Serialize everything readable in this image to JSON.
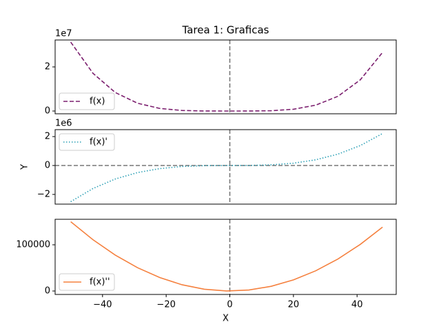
{
  "chart_data": [
    {
      "type": "line",
      "title": "Tarea 1: Graficas",
      "offset_text": "1e7",
      "legend": "lower left",
      "vline": 0,
      "x": [
        -50,
        -43,
        -36,
        -29,
        -22,
        -15,
        -8,
        -1,
        6,
        13,
        20,
        27,
        34,
        41,
        48
      ],
      "series": [
        {
          "name": "f(x)",
          "color": "#7b1e6e",
          "style": "dashed",
          "values": [
            31250000,
            17094005,
            8398080,
            3536405,
            1171280,
            253125,
            20480,
            5,
            6480,
            142805,
            800000,
            2657205,
            6681680,
            14128805,
            26542080
          ]
        }
      ],
      "xlim": [
        -54.9,
        52.3
      ],
      "ylim": [
        -1250000,
        32200000
      ],
      "yticks": [
        0,
        {
          "value": 20000000,
          "label": "2"
        }
      ]
    },
    {
      "type": "line",
      "ylabel": "Y",
      "offset_text": "1e6",
      "legend": "upper left",
      "vline": 0,
      "hline": 0,
      "x": [
        -50,
        -43,
        -36,
        -29,
        -22,
        -15,
        -8,
        -1,
        6,
        13,
        20,
        27,
        34,
        41,
        48
      ],
      "series": [
        {
          "name": "f(x)'",
          "color": "#2a9fb5",
          "style": "dotted",
          "values": [
            -2500000,
            -1590140,
            -933120,
            -487780,
            -212960,
            -67500,
            -10240,
            -20,
            4320,
            43940,
            160000,
            393660,
            786080,
            1378420,
            2211840
          ]
        }
      ],
      "xlim": [
        -54.9,
        52.3
      ],
      "ylim": [
        -2670000,
        2480000
      ],
      "yticks": [
        {
          "value": -2000000,
          "label": "−2"
        },
        0,
        {
          "value": 2000000,
          "label": "2"
        }
      ]
    },
    {
      "type": "line",
      "xlabel": "X",
      "legend": "lower left",
      "vline": 0,
      "x": [
        -50,
        -43,
        -36,
        -29,
        -22,
        -15,
        -8,
        -1,
        6,
        13,
        20,
        27,
        34,
        41,
        48
      ],
      "series": [
        {
          "name": "f(x)''",
          "color": "#f5803e",
          "style": "solid",
          "values": [
            150000,
            110940,
            77760,
            50460,
            29040,
            13500,
            3840,
            60,
            2160,
            10140,
            24000,
            43740,
            69360,
            100860,
            138240
          ]
        }
      ],
      "xlim": [
        -54.9,
        52.3
      ],
      "ylim": [
        -7460,
        155200
      ],
      "yticks": [
        0,
        100000
      ],
      "xticks": [
        {
          "value": -40,
          "label": "−40"
        },
        {
          "value": -20,
          "label": "−20"
        },
        0,
        20,
        40
      ]
    }
  ]
}
